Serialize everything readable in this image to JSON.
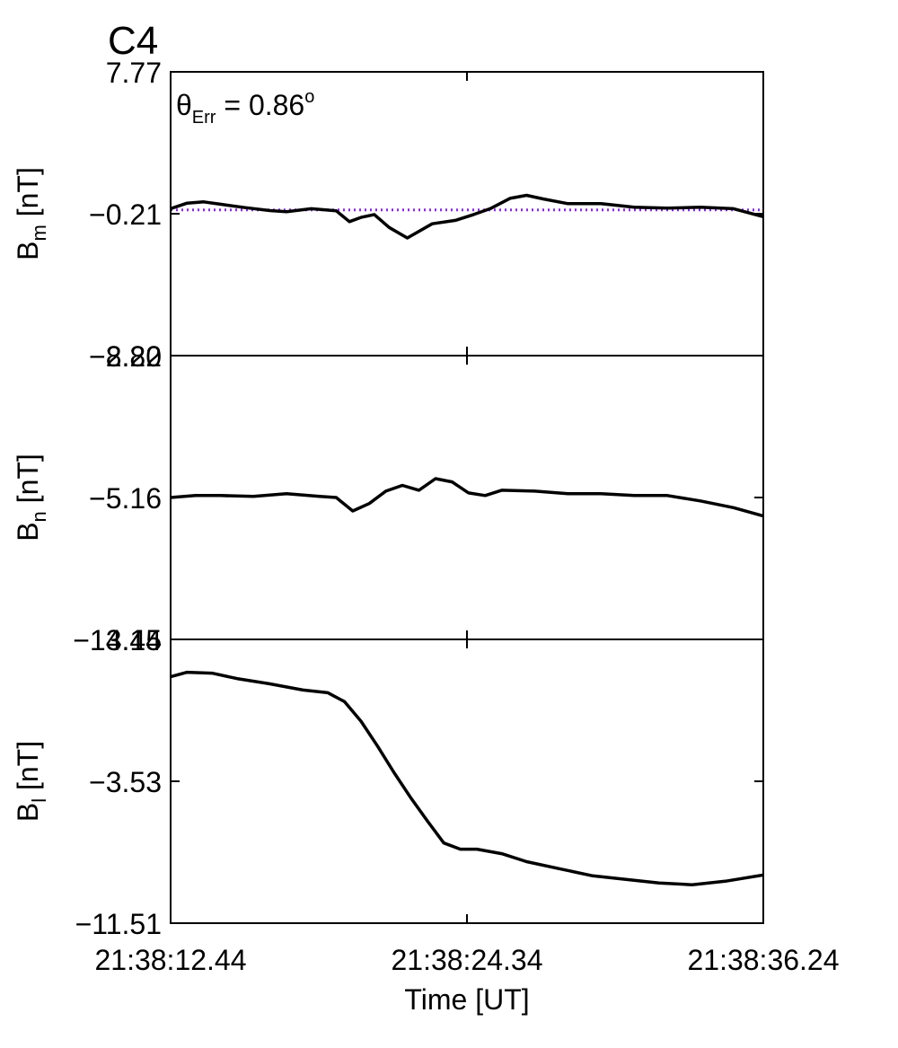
{
  "figure_label": "C4",
  "figure_label_color": "#ff0000",
  "annotation": {
    "theta": "θ",
    "sub": "Err",
    "rest": " =  0.86",
    "sup": "o"
  },
  "xlabel": "Time [UT]",
  "x_ticks": [
    "21:38:12.44",
    "21:38:24.34",
    "21:38:36.24"
  ],
  "line_color": "#000000",
  "reference_color": "#8a2be2",
  "chart_data": [
    {
      "type": "line",
      "ylabel": {
        "main": "B",
        "sub": "m",
        "unit": " [nT]"
      },
      "ylim": [
        -8.2,
        7.77
      ],
      "yticks": [
        "7.77",
        "-0.21",
        "-8.20"
      ],
      "reference_line": {
        "y": 0.0,
        "style": "dotted",
        "color": "#8a2be2"
      },
      "series": [
        {
          "x": [
            0,
            1,
            2,
            3,
            4.5,
            6,
            7,
            8.5,
            10,
            10.8,
            11.5,
            12.3,
            13.2,
            14.3,
            15.8,
            17.2,
            18.3,
            19.3,
            20.5,
            21.5,
            22.5,
            24,
            26,
            28,
            30,
            32,
            34,
            35.8
          ],
          "y": [
            0.07,
            0.38,
            0.45,
            0.32,
            0.13,
            -0.04,
            -0.1,
            0.07,
            -0.05,
            -0.66,
            -0.42,
            -0.26,
            -0.99,
            -1.58,
            -0.78,
            -0.59,
            -0.26,
            0.07,
            0.65,
            0.82,
            0.62,
            0.35,
            0.35,
            0.15,
            0.1,
            0.15,
            0.07,
            -0.38
          ]
        }
      ]
    },
    {
      "type": "line",
      "ylabel": {
        "main": "B",
        "sub": "n",
        "unit": " [nT]"
      },
      "ylim": [
        -13.14,
        2.82
      ],
      "yticks": [
        "2.82",
        "-5.16",
        "-13.14"
      ],
      "series": [
        {
          "x": [
            0,
            1.5,
            3,
            5,
            7,
            9,
            10,
            11,
            12,
            13,
            14,
            15,
            16,
            17,
            18,
            19,
            20,
            22,
            24,
            26,
            28,
            30,
            32,
            34,
            35.8
          ],
          "y": [
            -5.16,
            -5.05,
            -5.05,
            -5.1,
            -4.95,
            -5.1,
            -5.16,
            -5.92,
            -5.5,
            -4.8,
            -4.48,
            -4.75,
            -4.1,
            -4.28,
            -4.9,
            -5.05,
            -4.75,
            -4.8,
            -4.95,
            -4.95,
            -5.05,
            -5.05,
            -5.35,
            -5.73,
            -6.2
          ]
        }
      ]
    },
    {
      "type": "line",
      "ylabel": {
        "main": "B",
        "sub": "l",
        "unit": " [nT]"
      },
      "ylim": [
        -11.51,
        4.45
      ],
      "yticks": [
        "4.45",
        "-3.53",
        "-11.51"
      ],
      "series": [
        {
          "x": [
            0,
            1,
            2.5,
            4,
            6,
            8,
            9.5,
            10.5,
            11.5,
            12.5,
            13.5,
            14.5,
            15.5,
            16.5,
            17.5,
            18.5,
            20,
            21.5,
            23.5,
            25.5,
            27.5,
            29.5,
            31.5,
            33.5,
            35.8
          ],
          "y": [
            2.35,
            2.6,
            2.55,
            2.25,
            1.95,
            1.6,
            1.45,
            0.95,
            -0.15,
            -1.55,
            -3.05,
            -4.45,
            -5.75,
            -7.0,
            -7.35,
            -7.35,
            -7.6,
            -8.05,
            -8.45,
            -8.85,
            -9.05,
            -9.25,
            -9.35,
            -9.15,
            -8.8
          ]
        }
      ]
    }
  ]
}
